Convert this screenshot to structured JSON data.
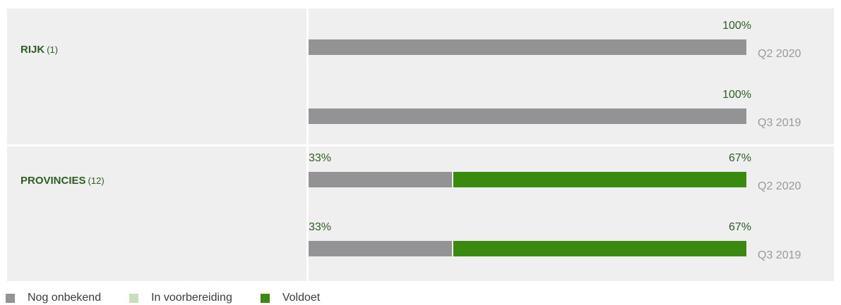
{
  "chart_data": {
    "type": "bar",
    "orientation": "horizontal",
    "stacked": true,
    "groups": [
      {
        "name": "RIJK",
        "count": "(1)",
        "rows": [
          {
            "period": "Q2 2020",
            "segments": [
              {
                "series": "Nog onbekend",
                "value": 100
              }
            ],
            "labels": [
              "100%"
            ]
          },
          {
            "period": "Q3 2019",
            "segments": [
              {
                "series": "Nog onbekend",
                "value": 100
              }
            ],
            "labels": [
              "100%"
            ]
          }
        ]
      },
      {
        "name": "PROVINCIES",
        "count": "(12)",
        "rows": [
          {
            "period": "Q2 2020",
            "segments": [
              {
                "series": "Nog onbekend",
                "value": 33
              },
              {
                "series": "Voldoet",
                "value": 67
              }
            ],
            "labels": [
              "33%",
              "67%"
            ]
          },
          {
            "period": "Q3 2019",
            "segments": [
              {
                "series": "Nog onbekend",
                "value": 33
              },
              {
                "series": "Voldoet",
                "value": 67
              }
            ],
            "labels": [
              "33%",
              "67%"
            ]
          }
        ]
      }
    ],
    "legend": [
      {
        "name": "Nog onbekend",
        "color": "#939396"
      },
      {
        "name": "In voorbereiding",
        "color": "#c8dfbd"
      },
      {
        "name": "Voldoet",
        "color": "#3a8a10"
      }
    ],
    "xlim": [
      0,
      100
    ],
    "legend_position": "bottom-left"
  }
}
